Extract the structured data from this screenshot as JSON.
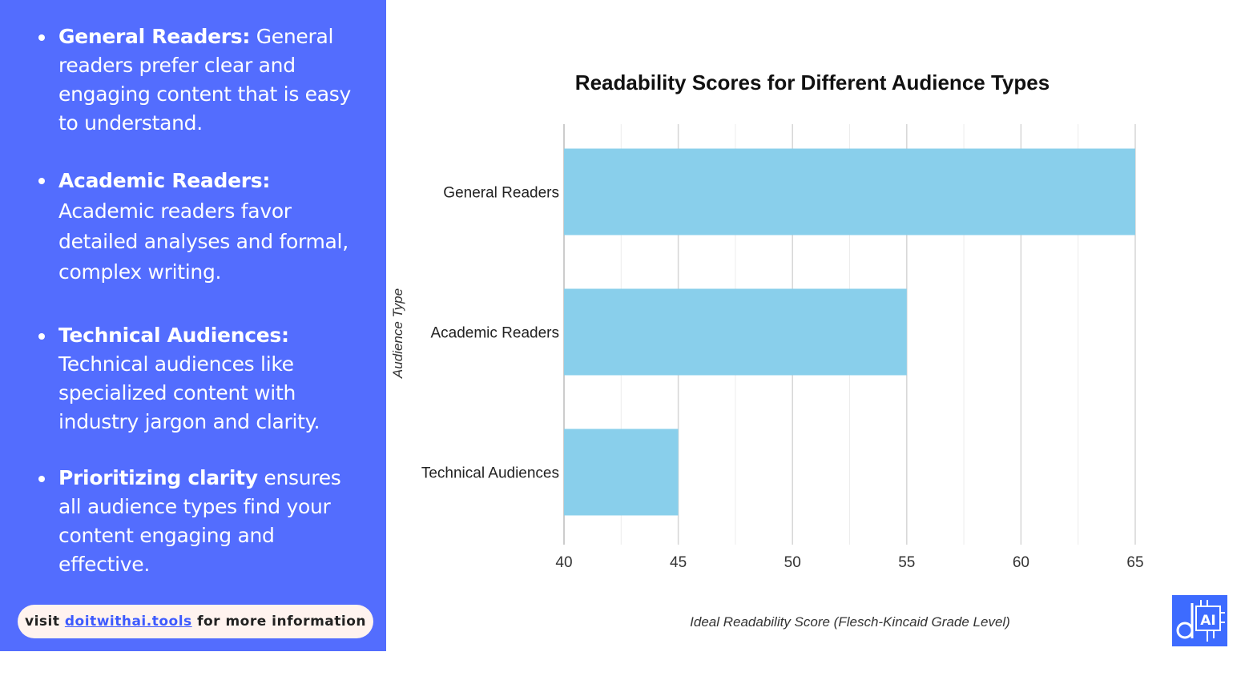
{
  "sidebar": {
    "bullets": [
      {
        "term": "General Readers:",
        "text": " General readers prefer clear and engaging content that is easy to understand."
      },
      {
        "term": "Academic Readers:",
        "text": " Academic readers favor detailed analyses and formal, complex writing."
      },
      {
        "term": "Technical Audiences:",
        "text": " Technical audiences like specialized content with industry jargon and clarity."
      },
      {
        "term": "Prioritizing clarity",
        "text": " ensures all audience types find your content engaging and effective."
      }
    ],
    "footer": {
      "prefix": "visit ",
      "link": "doitwithai.tools",
      "suffix": " for more information"
    },
    "background_color": "#536DFE"
  },
  "chart_data": {
    "type": "bar",
    "orientation": "horizontal",
    "title": "Readability Scores for Different Audience Types",
    "xlabel": "Ideal Readability Score (Flesch-Kincaid Grade Level)",
    "ylabel": "Audience Type",
    "categories": [
      "General Readers",
      "Academic Readers",
      "Technical Audiences"
    ],
    "values": [
      65,
      55,
      45
    ],
    "xlim": [
      40,
      65
    ],
    "xticks": [
      40,
      45,
      50,
      55,
      60,
      65
    ],
    "minor_gridlines": true,
    "grid": true,
    "bar_color": "#89CFEB",
    "legend": "none"
  },
  "logo": {
    "icon": "doitwithai-logo-icon",
    "text": "AI",
    "color": "#3D6BFF"
  }
}
